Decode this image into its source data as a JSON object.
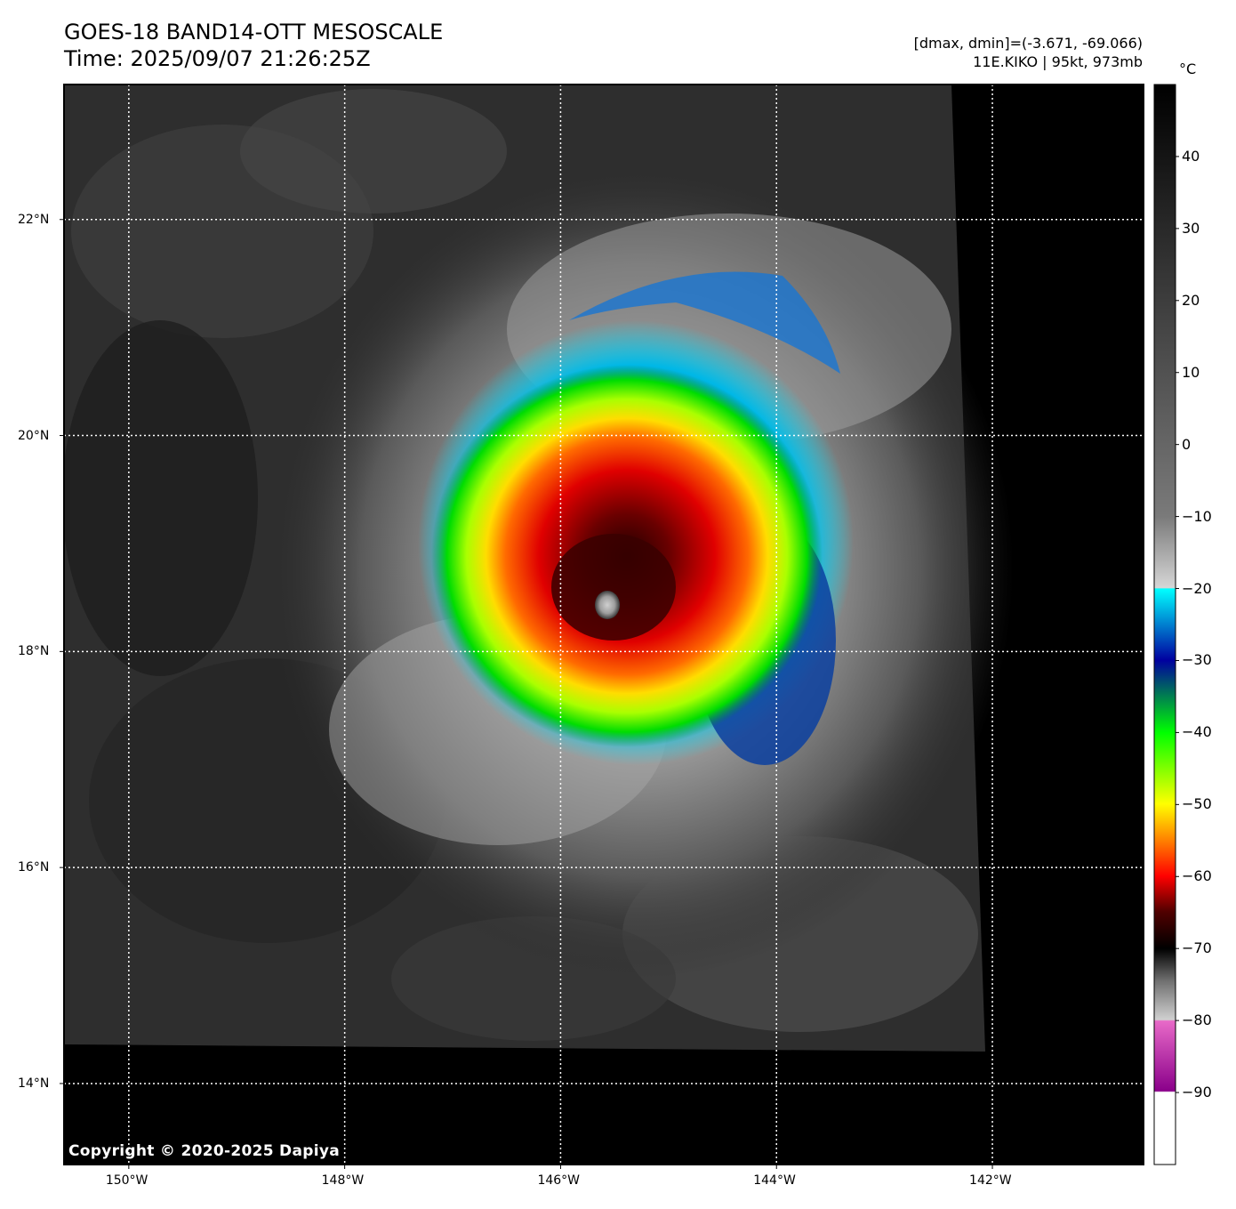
{
  "header": {
    "title_line1": "GOES-18 BAND14-OTT MESOSCALE",
    "title_line2": "Time: 2025/09/07 21:26:25Z",
    "range_text": "[dmax, dmin]=(-3.671, -69.066)",
    "storm_text": "11E.KIKO | 95kt, 973mb"
  },
  "map": {
    "lat_labels": [
      "22°N",
      "20°N",
      "18°N",
      "16°N",
      "14°N"
    ],
    "lat_values": [
      22,
      20,
      18,
      16,
      14
    ],
    "lon_labels": [
      "150°W",
      "148°W",
      "146°W",
      "144°W",
      "142°W"
    ],
    "lon_values": [
      -150,
      -148,
      -146,
      -144,
      -142
    ],
    "lon_range": [
      -150.6,
      -140.6
    ],
    "lat_range": [
      13.25,
      23.25
    ],
    "copyright": "Copyright © 2020-2025 Dapiya"
  },
  "colorbar": {
    "unit": "°C",
    "ticks": [
      "40",
      "30",
      "20",
      "10",
      "0",
      "−10",
      "−20",
      "−30",
      "−40",
      "−50",
      "−60",
      "−70",
      "−80",
      "−90"
    ],
    "tick_values": [
      40,
      30,
      20,
      10,
      0,
      -10,
      -20,
      -30,
      -40,
      -50,
      -60,
      -70,
      -80,
      -90
    ],
    "range": [
      -100,
      50
    ]
  }
}
